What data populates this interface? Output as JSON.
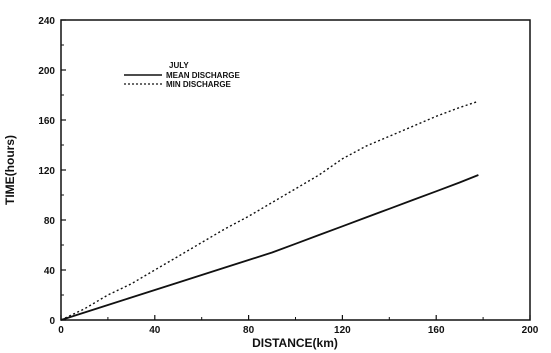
{
  "chart_data": {
    "type": "line",
    "title": "",
    "xlabel": "DISTANCE(km)",
    "ylabel": "TIME(hours)",
    "xlim": [
      0,
      200
    ],
    "ylim": [
      0,
      240
    ],
    "x_ticks": [
      "0",
      "40",
      "80",
      "120",
      "160",
      "200"
    ],
    "y_ticks": [
      "0",
      "40",
      "80",
      "120",
      "160",
      "200",
      "240"
    ],
    "grid": false,
    "legend_title": "JULY",
    "legend_position": "upper-left",
    "series": [
      {
        "name": "MEAN DISCHARGE",
        "style": "solid",
        "x": [
          0,
          10,
          20,
          30,
          40,
          50,
          60,
          70,
          80,
          90,
          100,
          110,
          120,
          130,
          140,
          150,
          160,
          170,
          178
        ],
        "y": [
          0,
          6,
          12,
          18,
          24,
          30,
          36,
          42,
          48,
          54,
          61,
          68,
          75,
          82,
          89,
          96,
          103,
          110,
          116
        ]
      },
      {
        "name": "MIN DISCHARGE",
        "style": "dotted",
        "x": [
          0,
          10,
          20,
          30,
          40,
          50,
          60,
          70,
          80,
          90,
          100,
          110,
          120,
          130,
          140,
          150,
          160,
          170,
          178
        ],
        "y": [
          0,
          9,
          20,
          29,
          40,
          51,
          62,
          73,
          83,
          94,
          105,
          116,
          129,
          139,
          147,
          155,
          163,
          170,
          175
        ]
      }
    ]
  }
}
